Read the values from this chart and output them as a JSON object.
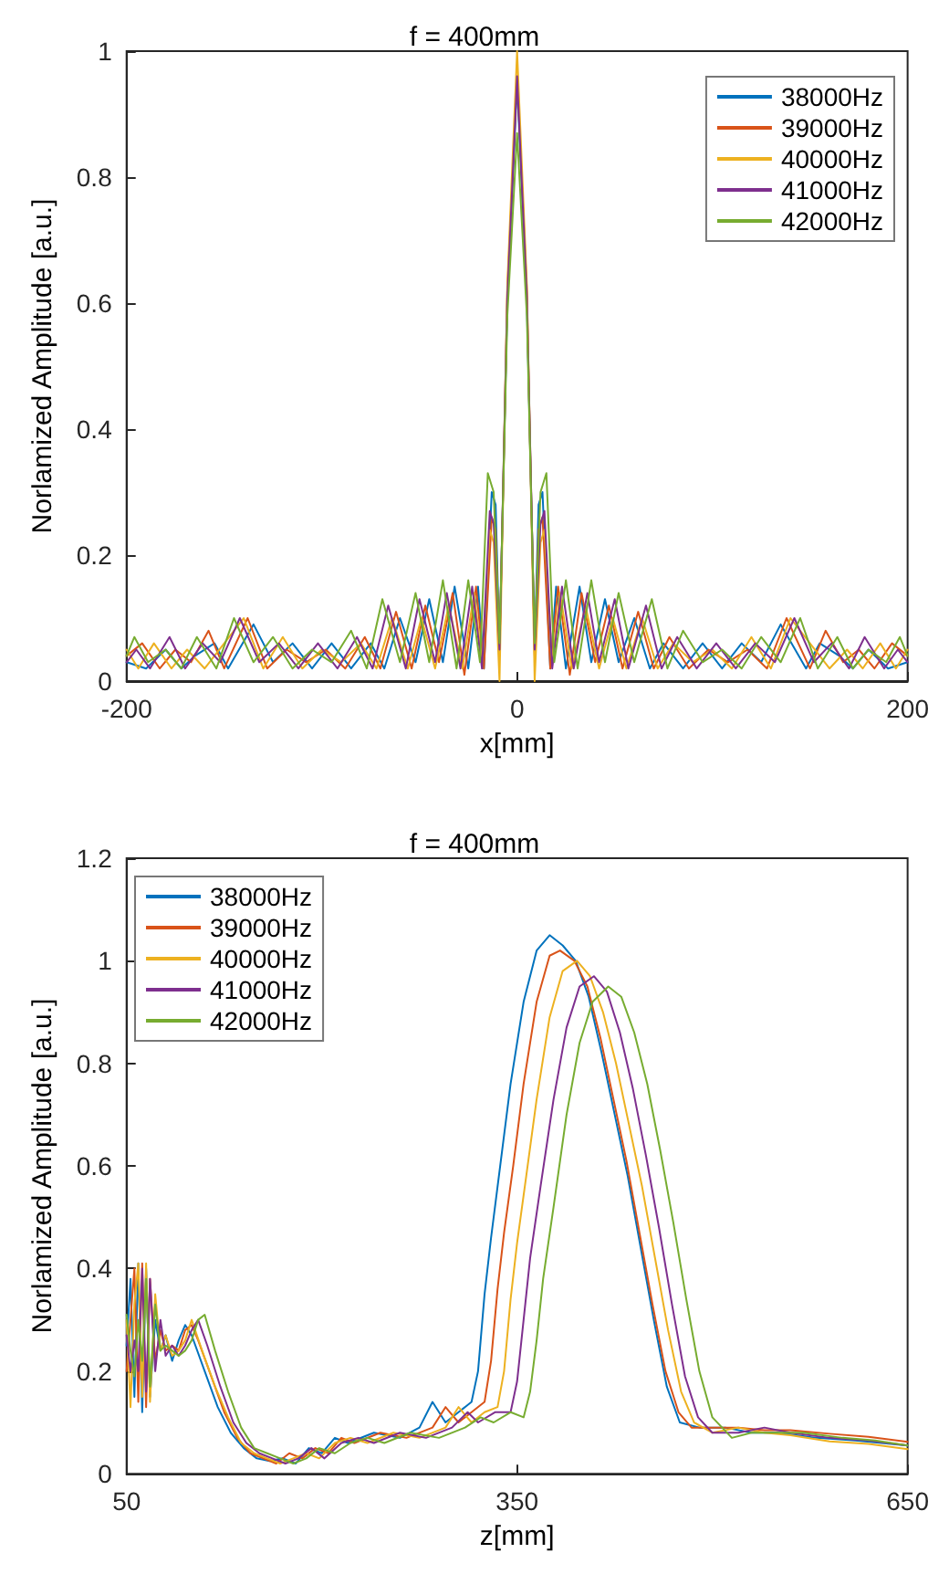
{
  "chart_data": [
    {
      "type": "line",
      "title": "f = 400mm",
      "xlabel": "x[mm]",
      "ylabel": "Norlamized Amplitude [a.u.]",
      "xlim": [
        -200,
        200
      ],
      "xticks": [
        -200,
        0,
        200
      ],
      "ylim": [
        0,
        1
      ],
      "yticks": [
        0,
        0.2,
        0.4,
        0.6,
        0.8,
        1
      ],
      "grid": false,
      "legend": "top right",
      "marker": "none",
      "line_style": "solid",
      "series": [
        {
          "name": "38000Hz",
          "color": "#0072bd",
          "x": [
            -200,
            -190,
            -180,
            -172,
            -165,
            -155,
            -148,
            -135,
            -125,
            -115,
            -105,
            -95,
            -85,
            -75,
            -68,
            -60,
            -52,
            -45,
            -38,
            -32,
            -25,
            -20,
            -17,
            -13,
            -11,
            -9,
            -5,
            0,
            5,
            9,
            11,
            13,
            17,
            20,
            25,
            32,
            38,
            45,
            52,
            60,
            68,
            75,
            85,
            95,
            105,
            115,
            125,
            135,
            148,
            155,
            165,
            172,
            180,
            190,
            200
          ],
          "values": [
            0.03,
            0.02,
            0.05,
            0.02,
            0.04,
            0.06,
            0.02,
            0.09,
            0.03,
            0.06,
            0.02,
            0.06,
            0.02,
            0.06,
            0.02,
            0.1,
            0.03,
            0.13,
            0.03,
            0.15,
            0.02,
            0.15,
            0.02,
            0.3,
            0.28,
            0.05,
            0.6,
            0.95,
            0.6,
            0.05,
            0.28,
            0.3,
            0.02,
            0.15,
            0.02,
            0.15,
            0.03,
            0.13,
            0.03,
            0.1,
            0.02,
            0.06,
            0.02,
            0.06,
            0.02,
            0.06,
            0.03,
            0.09,
            0.02,
            0.06,
            0.04,
            0.02,
            0.05,
            0.02,
            0.03
          ]
        },
        {
          "name": "39000Hz",
          "color": "#d95319",
          "x": [
            -200,
            -192,
            -183,
            -175,
            -167,
            -158,
            -150,
            -138,
            -128,
            -118,
            -108,
            -98,
            -88,
            -78,
            -70,
            -62,
            -54,
            -47,
            -40,
            -33,
            -27,
            -21,
            -17,
            -13,
            -11,
            -9,
            -5,
            0,
            5,
            9,
            11,
            13,
            17,
            21,
            27,
            33,
            40,
            47,
            54,
            62,
            70,
            78,
            88,
            98,
            108,
            118,
            128,
            138,
            150,
            158,
            167,
            175,
            183,
            192,
            200
          ],
          "values": [
            0.04,
            0.06,
            0.02,
            0.05,
            0.03,
            0.08,
            0.02,
            0.1,
            0.02,
            0.05,
            0.03,
            0.05,
            0.02,
            0.07,
            0.02,
            0.11,
            0.02,
            0.12,
            0.03,
            0.14,
            0.01,
            0.15,
            0.02,
            0.26,
            0.24,
            0.04,
            0.62,
            0.96,
            0.62,
            0.04,
            0.24,
            0.26,
            0.02,
            0.15,
            0.01,
            0.14,
            0.03,
            0.12,
            0.02,
            0.11,
            0.02,
            0.07,
            0.02,
            0.05,
            0.03,
            0.05,
            0.02,
            0.1,
            0.02,
            0.08,
            0.03,
            0.05,
            0.02,
            0.06,
            0.04
          ]
        },
        {
          "name": "40000Hz",
          "color": "#edb120",
          "x": [
            -200,
            -194,
            -186,
            -177,
            -169,
            -160,
            -150,
            -140,
            -130,
            -120,
            -110,
            -100,
            -90,
            -80,
            -72,
            -64,
            -56,
            -49,
            -42,
            -35,
            -28,
            -22,
            -18,
            -14,
            -12,
            -9,
            -5,
            0,
            5,
            9,
            12,
            14,
            18,
            22,
            28,
            35,
            42,
            49,
            56,
            64,
            72,
            80,
            90,
            100,
            110,
            120,
            130,
            140,
            150,
            160,
            169,
            177,
            186,
            194,
            200
          ],
          "values": [
            0.05,
            0.02,
            0.06,
            0.02,
            0.05,
            0.02,
            0.06,
            0.1,
            0.02,
            0.07,
            0.02,
            0.05,
            0.03,
            0.06,
            0.02,
            0.1,
            0.02,
            0.1,
            0.02,
            0.12,
            0.02,
            0.14,
            0.03,
            0.24,
            0.22,
            0,
            0.63,
            1,
            0.63,
            0,
            0.22,
            0.24,
            0.03,
            0.14,
            0.02,
            0.12,
            0.02,
            0.1,
            0.02,
            0.1,
            0.02,
            0.06,
            0.03,
            0.05,
            0.02,
            0.07,
            0.02,
            0.1,
            0.06,
            0.02,
            0.05,
            0.02,
            0.06,
            0.02,
            0.05
          ]
        },
        {
          "name": "41000Hz",
          "color": "#7e2f8e",
          "x": [
            -200,
            -195,
            -188,
            -178,
            -170,
            -161,
            -152,
            -142,
            -132,
            -122,
            -112,
            -102,
            -92,
            -82,
            -74,
            -66,
            -57,
            -50,
            -42,
            -36,
            -29,
            -23,
            -18,
            -14,
            -12,
            -9,
            -5,
            0,
            5,
            9,
            12,
            14,
            18,
            23,
            29,
            36,
            42,
            50,
            57,
            66,
            74,
            82,
            92,
            102,
            112,
            122,
            132,
            142,
            152,
            161,
            170,
            178,
            188,
            195,
            200
          ],
          "values": [
            0.03,
            0.05,
            0.02,
            0.07,
            0.02,
            0.06,
            0.03,
            0.1,
            0.03,
            0.06,
            0.02,
            0.06,
            0.02,
            0.07,
            0.02,
            0.12,
            0.02,
            0.13,
            0.03,
            0.14,
            0.02,
            0.15,
            0.02,
            0.27,
            0.25,
            0.05,
            0.61,
            0.96,
            0.61,
            0.05,
            0.25,
            0.27,
            0.02,
            0.15,
            0.02,
            0.14,
            0.03,
            0.13,
            0.02,
            0.12,
            0.02,
            0.07,
            0.02,
            0.06,
            0.02,
            0.06,
            0.03,
            0.1,
            0.03,
            0.06,
            0.02,
            0.07,
            0.02,
            0.05,
            0.03
          ]
        },
        {
          "name": "42000Hz",
          "color": "#77ac30",
          "x": [
            -200,
            -196,
            -189,
            -180,
            -172,
            -164,
            -154,
            -145,
            -135,
            -125,
            -115,
            -105,
            -95,
            -85,
            -77,
            -69,
            -60,
            -52,
            -45,
            -38,
            -31,
            -25,
            -19,
            -15,
            -12,
            -9,
            -5,
            0,
            5,
            9,
            12,
            15,
            19,
            25,
            31,
            38,
            45,
            52,
            60,
            69,
            77,
            85,
            95,
            105,
            115,
            125,
            135,
            145,
            154,
            164,
            172,
            180,
            189,
            196,
            200
          ],
          "values": [
            0.04,
            0.07,
            0.03,
            0.05,
            0.02,
            0.07,
            0.02,
            0.1,
            0.03,
            0.07,
            0.02,
            0.05,
            0.03,
            0.08,
            0.02,
            0.13,
            0.03,
            0.14,
            0.03,
            0.16,
            0.02,
            0.16,
            0.03,
            0.33,
            0.3,
            0.06,
            0.58,
            0.87,
            0.58,
            0.06,
            0.3,
            0.33,
            0.03,
            0.16,
            0.02,
            0.16,
            0.03,
            0.14,
            0.03,
            0.13,
            0.02,
            0.08,
            0.03,
            0.05,
            0.02,
            0.07,
            0.03,
            0.1,
            0.02,
            0.07,
            0.02,
            0.05,
            0.03,
            0.07,
            0.04
          ]
        }
      ]
    },
    {
      "type": "line",
      "title": "f = 400mm",
      "xlabel": "z[mm]",
      "ylabel": "Norlamized Amplitude [a.u.]",
      "xlim": [
        50,
        650
      ],
      "xticks": [
        50,
        350,
        650
      ],
      "ylim": [
        0,
        1.2
      ],
      "yticks": [
        0,
        0.2,
        0.4,
        0.6,
        0.8,
        1,
        1.2
      ],
      "grid": false,
      "legend": "top left",
      "marker": "none",
      "line_style": "solid",
      "series": [
        {
          "name": "38000Hz",
          "color": "#0072bd",
          "x": [
            50,
            53,
            56,
            59,
            62,
            65,
            68,
            72,
            76,
            80,
            85,
            90,
            95,
            100,
            110,
            120,
            130,
            140,
            150,
            160,
            170,
            180,
            190,
            200,
            210,
            220,
            240,
            260,
            275,
            285,
            295,
            305,
            315,
            320,
            325,
            330,
            337,
            345,
            355,
            365,
            375,
            385,
            395,
            405,
            415,
            425,
            435,
            445,
            455,
            465,
            475,
            490,
            510,
            530,
            550,
            580,
            610,
            650
          ],
          "values": [
            0.25,
            0.38,
            0.15,
            0.41,
            0.12,
            0.4,
            0.15,
            0.3,
            0.24,
            0.27,
            0.22,
            0.26,
            0.29,
            0.27,
            0.2,
            0.13,
            0.08,
            0.05,
            0.03,
            0.025,
            0.03,
            0.02,
            0.05,
            0.04,
            0.07,
            0.06,
            0.08,
            0.07,
            0.09,
            0.14,
            0.1,
            0.12,
            0.14,
            0.2,
            0.35,
            0.46,
            0.6,
            0.76,
            0.92,
            1.02,
            1.05,
            1.03,
            1.0,
            0.93,
            0.82,
            0.7,
            0.58,
            0.44,
            0.3,
            0.17,
            0.1,
            0.09,
            0.09,
            0.08,
            0.08,
            0.07,
            0.065,
            0.055
          ]
        },
        {
          "name": "39000Hz",
          "color": "#d95319",
          "x": [
            50,
            53,
            56,
            59,
            62,
            65,
            68,
            72,
            76,
            80,
            85,
            90,
            95,
            100,
            105,
            115,
            125,
            135,
            145,
            155,
            165,
            175,
            185,
            195,
            205,
            215,
            225,
            245,
            265,
            285,
            295,
            305,
            315,
            325,
            330,
            335,
            340,
            347,
            355,
            365,
            375,
            383,
            394,
            404,
            414,
            424,
            434,
            444,
            454,
            464,
            474,
            484,
            500,
            520,
            540,
            560,
            590,
            620,
            650
          ],
          "values": [
            0.2,
            0.3,
            0.4,
            0.14,
            0.41,
            0.13,
            0.38,
            0.22,
            0.28,
            0.24,
            0.25,
            0.24,
            0.28,
            0.29,
            0.26,
            0.19,
            0.12,
            0.07,
            0.04,
            0.03,
            0.02,
            0.04,
            0.03,
            0.05,
            0.04,
            0.07,
            0.06,
            0.08,
            0.07,
            0.09,
            0.13,
            0.1,
            0.12,
            0.14,
            0.22,
            0.36,
            0.47,
            0.6,
            0.76,
            0.92,
            1.01,
            1.02,
            1.0,
            0.95,
            0.85,
            0.73,
            0.61,
            0.47,
            0.33,
            0.2,
            0.12,
            0.09,
            0.09,
            0.09,
            0.085,
            0.085,
            0.078,
            0.072,
            0.062
          ]
        },
        {
          "name": "40000Hz",
          "color": "#edb120",
          "x": [
            50,
            53,
            56,
            59,
            62,
            65,
            68,
            72,
            76,
            80,
            85,
            90,
            95,
            100,
            108,
            118,
            128,
            138,
            148,
            158,
            168,
            178,
            188,
            198,
            210,
            222,
            235,
            255,
            275,
            295,
            305,
            315,
            325,
            335,
            340,
            345,
            350,
            357,
            365,
            375,
            385,
            396,
            406,
            416,
            426,
            436,
            446,
            456,
            466,
            476,
            486,
            500,
            520,
            540,
            560,
            590,
            620,
            650
          ],
          "values": [
            0.3,
            0.13,
            0.33,
            0.41,
            0.15,
            0.41,
            0.14,
            0.35,
            0.24,
            0.27,
            0.23,
            0.24,
            0.26,
            0.3,
            0.24,
            0.17,
            0.11,
            0.06,
            0.04,
            0.03,
            0.02,
            0.03,
            0.04,
            0.03,
            0.06,
            0.07,
            0.06,
            0.08,
            0.07,
            0.09,
            0.13,
            0.1,
            0.12,
            0.13,
            0.2,
            0.34,
            0.45,
            0.58,
            0.73,
            0.89,
            0.98,
            1.0,
            0.97,
            0.9,
            0.8,
            0.68,
            0.56,
            0.42,
            0.28,
            0.16,
            0.1,
            0.08,
            0.09,
            0.08,
            0.075,
            0.063,
            0.058,
            0.048
          ]
        },
        {
          "name": "41000Hz",
          "color": "#7e2f8e",
          "x": [
            50,
            53,
            56,
            59,
            62,
            65,
            68,
            72,
            76,
            80,
            85,
            90,
            95,
            100,
            105,
            112,
            122,
            132,
            142,
            152,
            162,
            172,
            182,
            192,
            202,
            215,
            228,
            240,
            260,
            280,
            300,
            312,
            320,
            333,
            345,
            350,
            355,
            360,
            368,
            378,
            388,
            398,
            409,
            419,
            429,
            439,
            449,
            459,
            469,
            479,
            489,
            500,
            520,
            540,
            560,
            590,
            620,
            650
          ],
          "values": [
            0.27,
            0.2,
            0.26,
            0.2,
            0.4,
            0.16,
            0.38,
            0.2,
            0.3,
            0.23,
            0.25,
            0.23,
            0.25,
            0.28,
            0.3,
            0.25,
            0.17,
            0.1,
            0.06,
            0.04,
            0.03,
            0.02,
            0.03,
            0.05,
            0.03,
            0.06,
            0.07,
            0.06,
            0.08,
            0.07,
            0.09,
            0.12,
            0.1,
            0.12,
            0.12,
            0.18,
            0.3,
            0.42,
            0.56,
            0.73,
            0.87,
            0.95,
            0.97,
            0.94,
            0.86,
            0.75,
            0.62,
            0.48,
            0.33,
            0.19,
            0.11,
            0.08,
            0.08,
            0.09,
            0.08,
            0.07,
            0.065,
            0.055
          ]
        },
        {
          "name": "42000Hz",
          "color": "#77ac30",
          "x": [
            50,
            53,
            56,
            59,
            62,
            65,
            68,
            72,
            76,
            80,
            85,
            90,
            95,
            100,
            105,
            110,
            118,
            128,
            138,
            148,
            158,
            168,
            178,
            188,
            198,
            210,
            222,
            235,
            248,
            268,
            290,
            310,
            322,
            332,
            345,
            355,
            360,
            365,
            370,
            378,
            388,
            398,
            408,
            420,
            430,
            440,
            450,
            460,
            470,
            480,
            490,
            500,
            515,
            530,
            550,
            570,
            600,
            625,
            650
          ],
          "values": [
            0.31,
            0.24,
            0.19,
            0.3,
            0.22,
            0.38,
            0.17,
            0.33,
            0.24,
            0.25,
            0.24,
            0.23,
            0.24,
            0.26,
            0.3,
            0.31,
            0.24,
            0.16,
            0.09,
            0.05,
            0.04,
            0.03,
            0.02,
            0.03,
            0.05,
            0.04,
            0.06,
            0.07,
            0.06,
            0.08,
            0.07,
            0.09,
            0.11,
            0.1,
            0.12,
            0.11,
            0.16,
            0.26,
            0.38,
            0.52,
            0.7,
            0.84,
            0.92,
            0.95,
            0.93,
            0.86,
            0.76,
            0.63,
            0.49,
            0.34,
            0.2,
            0.11,
            0.07,
            0.08,
            0.08,
            0.08,
            0.07,
            0.065,
            0.055
          ]
        }
      ]
    }
  ]
}
